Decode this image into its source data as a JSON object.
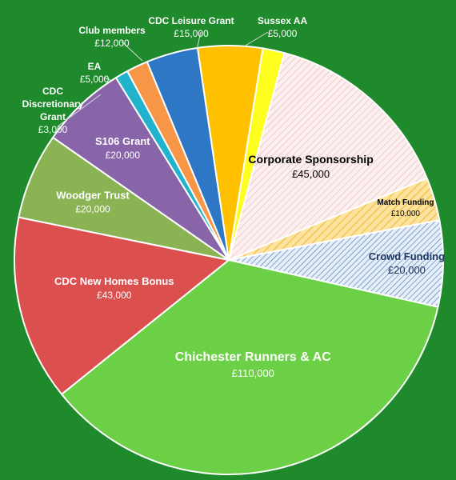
{
  "chart_data": {
    "type": "pie",
    "title": "",
    "unit": "£",
    "slices": [
      {
        "label": "Corporate Sponsorship",
        "value_label": "£45,000",
        "value": 45000,
        "color": "#fbeeee",
        "pattern": "diag-red"
      },
      {
        "label": "Match Funding",
        "value_label": "£10,000",
        "value": 10000,
        "color": "#fde3a0",
        "pattern": "diag-gold"
      },
      {
        "label": "Crowd Funding",
        "value_label": "£20,000",
        "value": 20000,
        "color": "#dde8f5",
        "pattern": "diag-blue"
      },
      {
        "label": "Chichester Runners & AC",
        "value_label": "£110,000",
        "value": 110000,
        "color": "#6cd046"
      },
      {
        "label": "CDC New Homes Bonus",
        "value_label": "£43,000",
        "value": 43000,
        "color": "#dc4f4f"
      },
      {
        "label": "Woodger Trust",
        "value_label": "£20,000",
        "value": 20000,
        "color": "#8ab453"
      },
      {
        "label": "S106 Grant",
        "value_label": "£20,000",
        "value": 20000,
        "color": "#8864a8"
      },
      {
        "label": "CDC Discretionary Grant",
        "value_label": "£3,000",
        "value": 3000,
        "color": "#21b3cc"
      },
      {
        "label": "EA",
        "value_label": "£5,000",
        "value": 5000,
        "color": "#f79646"
      },
      {
        "label": "Club members",
        "value_label": "£12,000",
        "value": 12000,
        "color": "#2d77c4"
      },
      {
        "label": "CDC Leisure Grant",
        "value_label": "£15,000",
        "value": 15000,
        "color": "#ffc000"
      },
      {
        "label": "Sussex AA",
        "value_label": "£5,000",
        "value": 5000,
        "color": "#ffff1f"
      }
    ]
  }
}
